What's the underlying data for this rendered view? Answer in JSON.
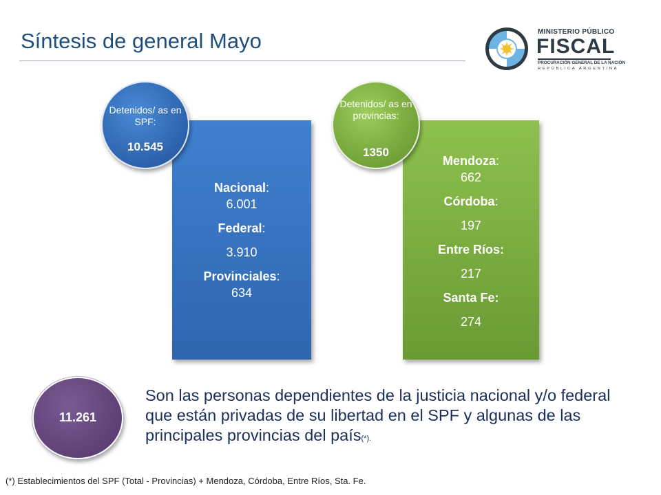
{
  "title": "Síntesis de general Mayo",
  "logo": {
    "line1": "MINISTERIO PÚBLICO",
    "line2": "FISCAL",
    "line3": "PROCURACIÓN GENERAL DE LA NACIÓN",
    "line4": "REPÚBLICA ARGENTINA"
  },
  "spf": {
    "circle_label": "Detenidos/ as en SPF:",
    "circle_value": "10.545",
    "items": [
      {
        "label": "Nacional",
        "sep": ":",
        "value": "6.001"
      },
      {
        "label": "Federal",
        "sep": ":",
        "value": "3.910"
      },
      {
        "label": "Provinciales",
        "sep": ":",
        "value": "634"
      }
    ]
  },
  "provincias": {
    "circle_label": "Detenidos/ as en provincias:",
    "circle_value": "1350",
    "items": [
      {
        "label": "Mendoza",
        "sep": ":",
        "value": "662"
      },
      {
        "label": "Córdoba",
        "sep": ":",
        "value": "197"
      },
      {
        "label": "Entre Ríos:",
        "sep": "",
        "value": "217"
      },
      {
        "label": "Santa Fe:",
        "sep": "",
        "value": "274"
      }
    ]
  },
  "total": {
    "value": "11.261",
    "text": "Son las personas dependientes de la justicia nacional y/o federal que están privadas de su libertad en el SPF y algunas de las principales provincias del país",
    "mark": "(*)."
  },
  "footnote": "(*) Establecimientos del SPF (Total - Provincias) + Mendoza, Córdoba, Entre Ríos, Sta. Fe.",
  "colors": {
    "title": "#1f4e79",
    "blue": "#2f66ae",
    "green": "#7aad3e",
    "purple": "#5a3d72"
  }
}
